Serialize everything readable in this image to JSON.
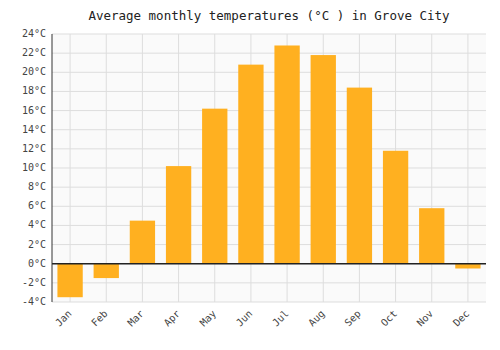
{
  "chart_data": {
    "type": "bar",
    "title": "Average monthly temperatures (°C ) in Grove City",
    "categories": [
      "Jan",
      "Feb",
      "Mar",
      "Apr",
      "May",
      "Jun",
      "Jul",
      "Aug",
      "Sep",
      "Oct",
      "Nov",
      "Dec"
    ],
    "values": [
      -3.5,
      -1.5,
      4.5,
      10.2,
      16.2,
      20.8,
      22.8,
      21.8,
      18.4,
      11.8,
      5.8,
      -0.5
    ],
    "color": "#FFB020",
    "ylim": [
      -4,
      24
    ],
    "yticks": [
      {
        "value": -4,
        "label": "-4°C"
      },
      {
        "value": -2,
        "label": "-2°C"
      },
      {
        "value": 0,
        "label": "0°C"
      },
      {
        "value": 2,
        "label": "2°C"
      },
      {
        "value": 4,
        "label": "4°C"
      },
      {
        "value": 6,
        "label": "6°C"
      },
      {
        "value": 8,
        "label": "8°C"
      },
      {
        "value": 10,
        "label": "10°C"
      },
      {
        "value": 12,
        "label": "12°C"
      },
      {
        "value": 14,
        "label": "14°C"
      },
      {
        "value": 16,
        "label": "16°C"
      },
      {
        "value": 18,
        "label": "18°C"
      },
      {
        "value": 20,
        "label": "20°C"
      },
      {
        "value": 22,
        "label": "22°C"
      },
      {
        "value": 24,
        "label": "24°C"
      }
    ],
    "grid": true
  }
}
